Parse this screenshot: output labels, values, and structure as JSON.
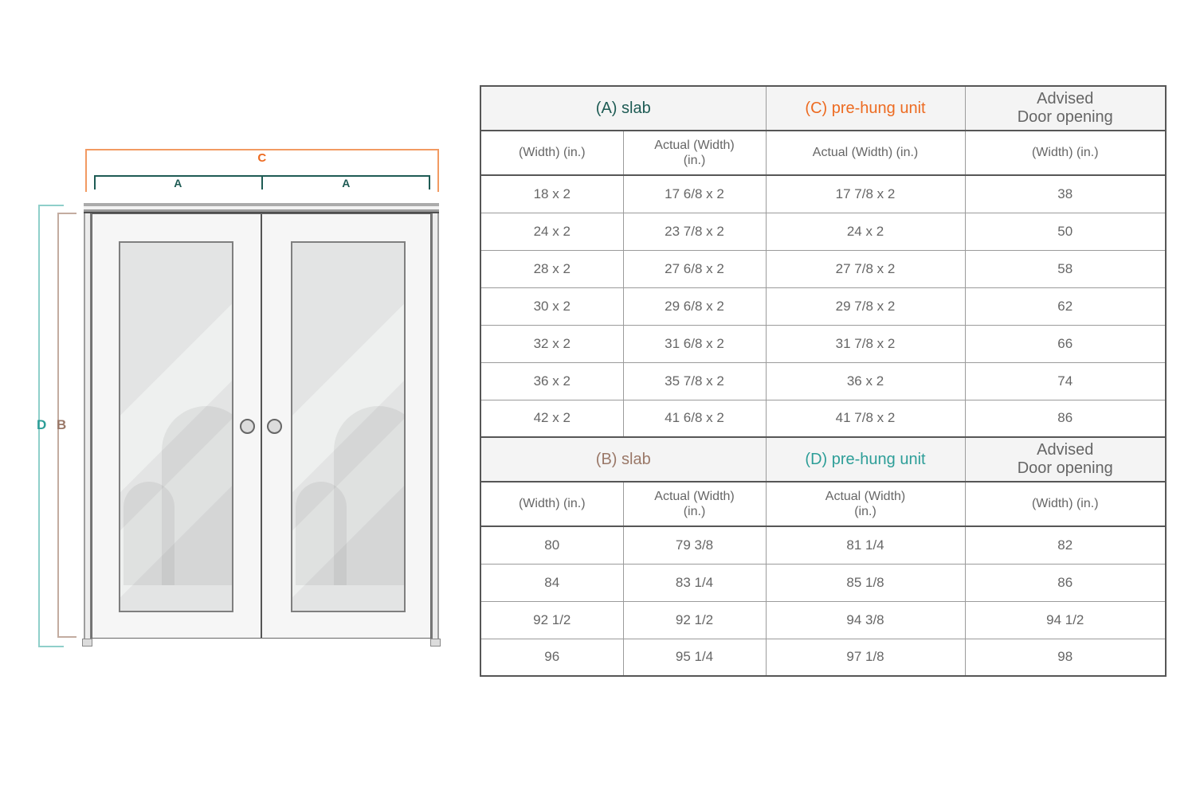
{
  "diagram": {
    "marker_c": "C",
    "marker_a_left": "A",
    "marker_a_right": "A",
    "marker_d": "D",
    "marker_b": "B",
    "colors": {
      "orange": "#ED6B21",
      "teal_dark": "#1E5B54",
      "teal": "#2D9E98",
      "brown": "#9A7868"
    }
  },
  "table": {
    "section_a": {
      "title_slab": "(A) slab",
      "title_prehung": "(C) pre-hung unit",
      "title_advised": "Advised\nDoor opening",
      "col_headers": [
        "(Width) (in.)",
        "Actual (Width)\n(in.)",
        "Actual (Width) (in.)",
        "(Width) (in.)"
      ],
      "rows": [
        [
          "18 x 2",
          "17 6/8 x 2",
          "17 7/8 x 2",
          "38"
        ],
        [
          "24 x 2",
          "23 7/8 x 2",
          "24 x 2",
          "50"
        ],
        [
          "28 x 2",
          "27 6/8 x 2",
          "27 7/8 x 2",
          "58"
        ],
        [
          "30 x 2",
          "29 6/8 x 2",
          "29 7/8 x 2",
          "62"
        ],
        [
          "32 x 2",
          "31 6/8 x 2",
          "31 7/8 x 2",
          "66"
        ],
        [
          "36 x 2",
          "35 7/8 x 2",
          "36 x 2",
          "74"
        ],
        [
          "42 x 2",
          "41 6/8 x 2",
          "41 7/8 x 2",
          "86"
        ]
      ]
    },
    "section_b": {
      "title_slab": "(B) slab",
      "title_prehung": "(D) pre-hung unit",
      "title_advised": "Advised\nDoor opening",
      "col_headers": [
        "(Width) (in.)",
        "Actual (Width)\n(in.)",
        "Actual (Width)\n(in.)",
        "(Width) (in.)"
      ],
      "rows": [
        [
          "80",
          "79 3/8",
          "81 1/4",
          "82"
        ],
        [
          "84",
          "83 1/4",
          "85 1/8",
          "86"
        ],
        [
          "92 1/2",
          "92 1/2",
          "94 3/8",
          "94 1/2"
        ],
        [
          "96",
          "95 1/4",
          "97 1/8",
          "98"
        ]
      ]
    }
  }
}
